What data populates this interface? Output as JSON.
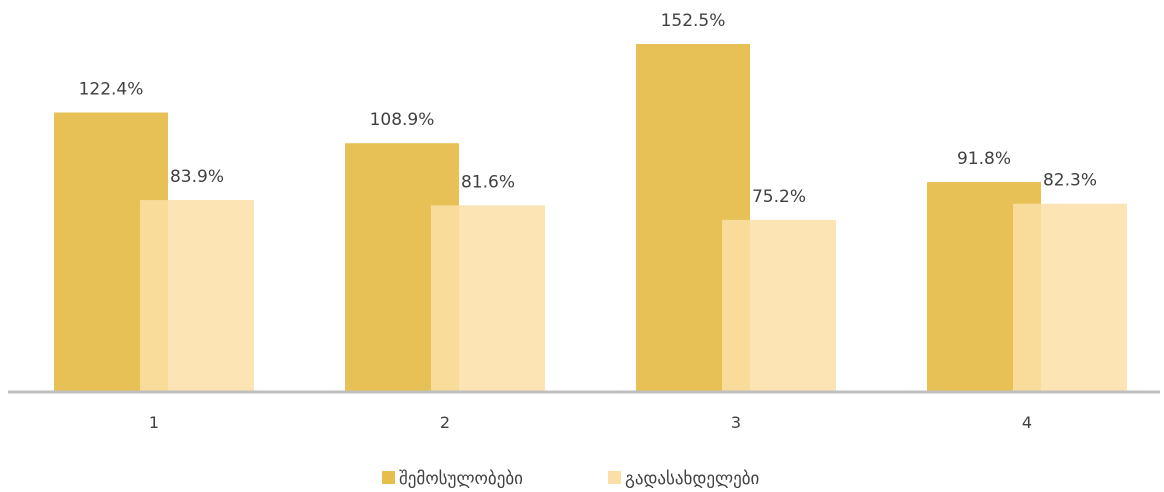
{
  "chart_data": {
    "type": "bar",
    "categories": [
      "1",
      "2",
      "3",
      "4"
    ],
    "series": [
      {
        "name": "შემოსულობები",
        "values": [
          122.4,
          108.9,
          152.5,
          91.8
        ],
        "labels": [
          "122.4%",
          "108.9%",
          "152.5%",
          "91.8%"
        ],
        "color": "#E6BE4C"
      },
      {
        "name": "გადასახდელები",
        "values": [
          83.9,
          81.6,
          75.2,
          82.3
        ],
        "labels": [
          "83.9%",
          "81.6%",
          "75.2%",
          "82.3%"
        ],
        "color": "#FBDFA7"
      }
    ],
    "ylim": [
      0,
      152.5
    ],
    "grid": false,
    "legend_position": "bottom"
  }
}
